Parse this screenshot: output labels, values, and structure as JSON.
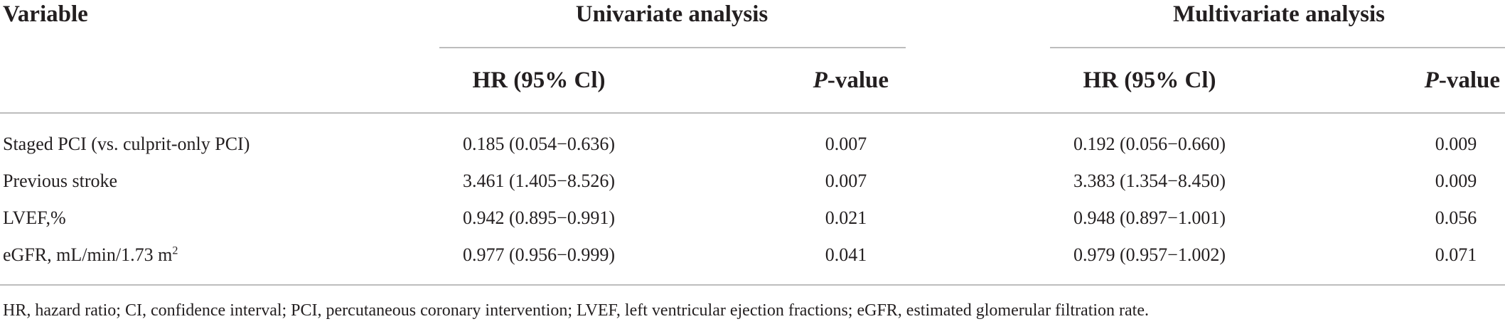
{
  "table": {
    "variable_header": "Variable",
    "groups": [
      {
        "label": "Univariate analysis"
      },
      {
        "label": "Multivariate analysis"
      }
    ],
    "subheaders": {
      "hr": "HR (95% Cl)",
      "p_italic": "P",
      "p_rest": "-value"
    },
    "rows": [
      {
        "variable": "Staged PCI (vs. culprit-only PCI)",
        "variable_sup": "",
        "uni_hr": "0.185 (0.054−0.636)",
        "uni_p": "0.007",
        "multi_hr": "0.192 (0.056−0.660)",
        "multi_p": "0.009"
      },
      {
        "variable": "Previous stroke",
        "variable_sup": "",
        "uni_hr": "3.461 (1.405−8.526)",
        "uni_p": "0.007",
        "multi_hr": "3.383 (1.354−8.450)",
        "multi_p": "0.009"
      },
      {
        "variable": "LVEF,%",
        "variable_sup": "",
        "uni_hr": "0.942 (0.895−0.991)",
        "uni_p": "0.021",
        "multi_hr": "0.948 (0.897−1.001)",
        "multi_p": "0.056"
      },
      {
        "variable": "eGFR, mL/min/1.73 m",
        "variable_sup": "2",
        "uni_hr": "0.977 (0.956−0.999)",
        "uni_p": "0.041",
        "multi_hr": "0.979 (0.957−1.002)",
        "multi_p": "0.071"
      }
    ],
    "footnote": "HR, hazard ratio; CI, confidence interval; PCI, percutaneous coronary intervention; LVEF, left ventricular ejection fractions; eGFR, estimated glomerular filtration rate."
  }
}
